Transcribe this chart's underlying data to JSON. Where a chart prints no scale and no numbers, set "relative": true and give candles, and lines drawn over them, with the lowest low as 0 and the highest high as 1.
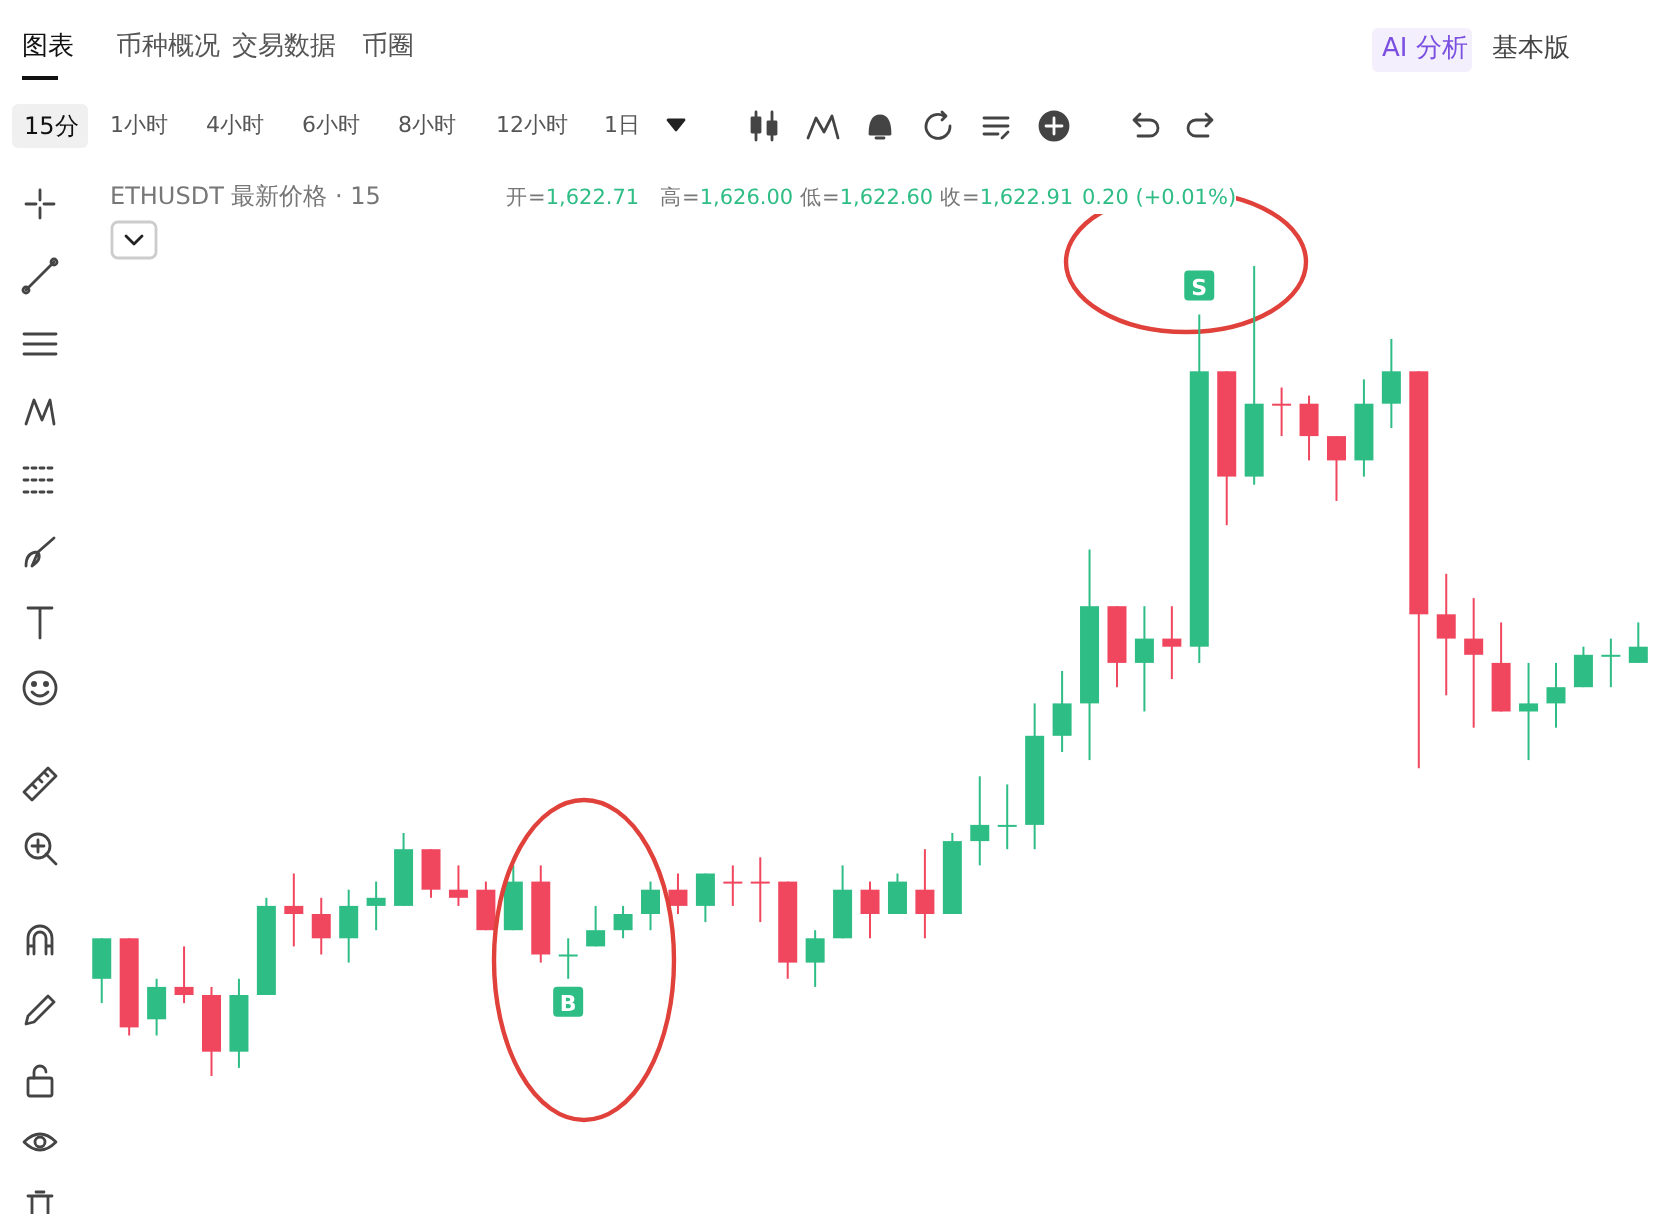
{
  "chart_data": {
    "type": "candlestick",
    "relative": true,
    "categories": [
      null,
      null,
      null,
      null,
      null,
      null,
      null,
      null,
      null,
      null,
      null,
      null,
      null,
      null,
      null,
      null,
      null,
      null,
      null,
      null,
      null,
      null,
      null,
      null,
      null,
      null,
      null,
      null,
      null,
      null,
      null,
      null,
      null,
      null,
      null,
      null,
      null,
      null,
      null,
      null,
      null,
      null,
      null,
      null,
      null,
      null,
      null,
      null,
      null,
      null,
      null,
      null,
      null,
      null,
      null,
      null,
      null
    ],
    "ohlc": [
      [
        0.12,
        0.17,
        0.09,
        0.17
      ],
      [
        0.17,
        0.17,
        0.05,
        0.06
      ],
      [
        0.07,
        0.12,
        0.05,
        0.11
      ],
      [
        0.11,
        0.16,
        0.09,
        0.1
      ],
      [
        0.1,
        0.11,
        0,
        0.03
      ],
      [
        0.03,
        0.12,
        0.01,
        0.1
      ],
      [
        0.1,
        0.22,
        0.1,
        0.21
      ],
      [
        0.21,
        0.25,
        0.16,
        0.2
      ],
      [
        0.2,
        0.22,
        0.15,
        0.17
      ],
      [
        0.17,
        0.23,
        0.14,
        0.21
      ],
      [
        0.21,
        0.24,
        0.18,
        0.22
      ],
      [
        0.21,
        0.3,
        0.21,
        0.28
      ],
      [
        0.28,
        0.28,
        0.22,
        0.23
      ],
      [
        0.23,
        0.26,
        0.21,
        0.22
      ],
      [
        0.23,
        0.24,
        0.18,
        0.18
      ],
      [
        0.18,
        0.26,
        0.18,
        0.24
      ],
      [
        0.24,
        0.26,
        0.14,
        0.15
      ],
      [
        0.15,
        0.17,
        0.12,
        0.15
      ],
      [
        0.16,
        0.21,
        0.16,
        0.18
      ],
      [
        0.18,
        0.21,
        0.17,
        0.2
      ],
      [
        0.2,
        0.24,
        0.18,
        0.23
      ],
      [
        0.23,
        0.25,
        0.2,
        0.21
      ],
      [
        0.21,
        0.25,
        0.19,
        0.25
      ],
      [
        0.24,
        0.26,
        0.21,
        0.24
      ],
      [
        0.24,
        0.27,
        0.19,
        0.24
      ],
      [
        0.24,
        0.24,
        0.12,
        0.14
      ],
      [
        0.14,
        0.18,
        0.11,
        0.17
      ],
      [
        0.17,
        0.26,
        0.17,
        0.23
      ],
      [
        0.23,
        0.24,
        0.17,
        0.2
      ],
      [
        0.2,
        0.25,
        0.2,
        0.24
      ],
      [
        0.23,
        0.28,
        0.17,
        0.2
      ],
      [
        0.2,
        0.3,
        0.2,
        0.29
      ],
      [
        0.29,
        0.37,
        0.26,
        0.31
      ],
      [
        0.31,
        0.36,
        0.28,
        0.31
      ],
      [
        0.31,
        0.46,
        0.28,
        0.42
      ],
      [
        0.42,
        0.5,
        0.4,
        0.46
      ],
      [
        0.46,
        0.65,
        0.39,
        0.58
      ],
      [
        0.58,
        0.58,
        0.48,
        0.51
      ],
      [
        0.51,
        0.58,
        0.45,
        0.54
      ],
      [
        0.54,
        0.58,
        0.49,
        0.53
      ],
      [
        0.53,
        0.94,
        0.51,
        0.87
      ],
      [
        0.87,
        0.87,
        0.68,
        0.74
      ],
      [
        0.74,
        1,
        0.73,
        0.83
      ],
      [
        0.83,
        0.85,
        0.79,
        0.83
      ],
      [
        0.83,
        0.84,
        0.76,
        0.79
      ],
      [
        0.79,
        0.79,
        0.71,
        0.76
      ],
      [
        0.76,
        0.86,
        0.74,
        0.83
      ],
      [
        0.83,
        0.91,
        0.8,
        0.87
      ],
      [
        0.87,
        0.87,
        0.38,
        0.57
      ],
      [
        0.57,
        0.62,
        0.47,
        0.54
      ],
      [
        0.54,
        0.59,
        0.43,
        0.52
      ],
      [
        0.51,
        0.56,
        0.45,
        0.45
      ],
      [
        0.45,
        0.51,
        0.39,
        0.46
      ],
      [
        0.46,
        0.51,
        0.43,
        0.48
      ],
      [
        0.48,
        0.53,
        0.48,
        0.52
      ],
      [
        0.52,
        0.54,
        0.48,
        0.52
      ],
      [
        0.51,
        0.56,
        0.51,
        0.53
      ]
    ],
    "colors": [
      "#2ebd85",
      "#f0475f",
      "#2ebd85",
      "#f0475f",
      "#f0475f",
      "#2ebd85",
      "#2ebd85",
      "#f0475f",
      "#f0475f",
      "#2ebd85",
      "#2ebd85",
      "#2ebd85",
      "#f0475f",
      "#f0475f",
      "#f0475f",
      "#2ebd85",
      "#f0475f",
      "#2ebd85",
      "#2ebd85",
      "#2ebd85",
      "#2ebd85",
      "#f0475f",
      "#2ebd85",
      "#f0475f",
      "#f0475f",
      "#f0475f",
      "#2ebd85",
      "#2ebd85",
      "#f0475f",
      "#2ebd85",
      "#f0475f",
      "#2ebd85",
      "#2ebd85",
      "#2ebd85",
      "#2ebd85",
      "#2ebd85",
      "#2ebd85",
      "#f0475f",
      "#2ebd85",
      "#f0475f",
      "#2ebd85",
      "#f0475f",
      "#2ebd85",
      "#f0475f",
      "#f0475f",
      "#f0475f",
      "#2ebd85",
      "#2ebd85",
      "#f0475f",
      "#f0475f",
      "#f0475f",
      "#f0475f",
      "#2ebd85",
      "#2ebd85",
      "#2ebd85",
      "#2ebd85",
      "#2ebd85"
    ],
    "annotations": [
      "图表",
      "币种概况",
      "交易数据",
      "币圈",
      "AI 分析",
      "基本版",
      "15分",
      "1小时",
      "4小时",
      "6小时",
      "8小时",
      "12小时",
      "1日",
      "ETHUSDT 最新价格 · 15",
      "开=1,622.71",
      "高=1,626.00",
      "低=1,622.60",
      "收=1,622.91",
      "0.20 (+0.01%)",
      {
        "text": "B",
        "y": 0.12
      },
      {
        "text": "S",
        "y": 0.94
      }
    ]
  }
}
